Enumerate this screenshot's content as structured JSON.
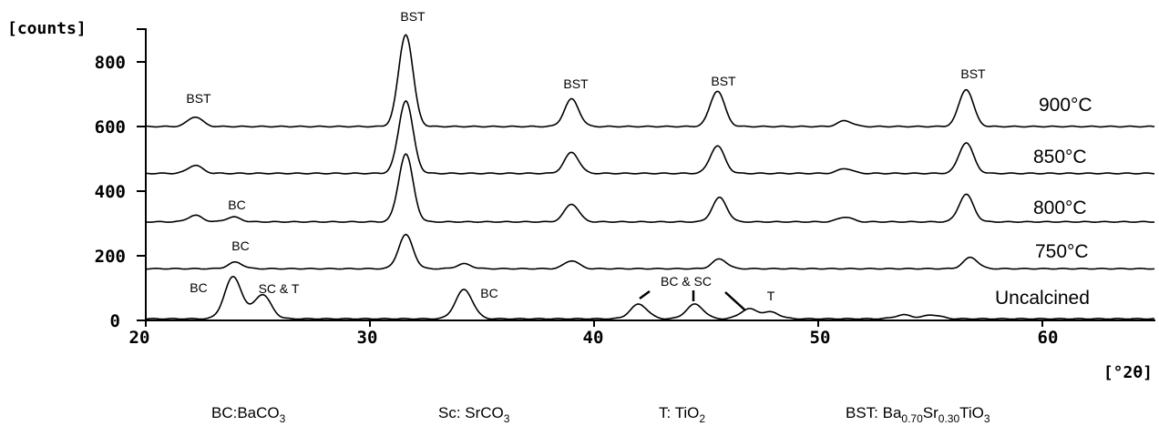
{
  "chart_data": {
    "type": "line",
    "xlabel": "[°2θ]",
    "ylabel": "[counts]",
    "xlim": [
      20,
      65
    ],
    "ylim": [
      0,
      900
    ],
    "x_ticks": [
      "20",
      "30",
      "40",
      "50",
      "60"
    ],
    "y_ticks": [
      "0",
      "200",
      "400",
      "600",
      "800"
    ],
    "grid": false,
    "series": [
      {
        "name": "900°C",
        "baseline": 600,
        "peaks": [
          [
            22.2,
            30
          ],
          [
            31.6,
            285
          ],
          [
            39.0,
            85
          ],
          [
            45.5,
            110
          ],
          [
            51.2,
            18
          ],
          [
            56.6,
            115
          ]
        ]
      },
      {
        "name": "850°C",
        "baseline": 455,
        "peaks": [
          [
            22.2,
            25
          ],
          [
            31.6,
            225
          ],
          [
            39.0,
            65
          ],
          [
            45.5,
            85
          ],
          [
            51.2,
            15
          ],
          [
            56.6,
            95
          ]
        ]
      },
      {
        "name": "800°C",
        "baseline": 305,
        "peaks": [
          [
            22.2,
            20
          ],
          [
            23.9,
            15
          ],
          [
            31.6,
            210
          ],
          [
            39.0,
            55
          ],
          [
            45.6,
            75
          ],
          [
            51.2,
            15
          ],
          [
            56.6,
            85
          ]
        ]
      },
      {
        "name": "750°C",
        "baseline": 160,
        "peaks": [
          [
            24.0,
            20
          ],
          [
            31.6,
            105
          ],
          [
            34.2,
            15
          ],
          [
            39.0,
            25
          ],
          [
            45.6,
            30
          ],
          [
            56.8,
            35
          ]
        ]
      },
      {
        "name": "Uncalcined",
        "baseline": 5,
        "peaks": [
          [
            23.9,
            130
          ],
          [
            25.2,
            75
          ],
          [
            34.2,
            90
          ],
          [
            42.0,
            45
          ],
          [
            44.5,
            45
          ],
          [
            46.9,
            30
          ],
          [
            47.9,
            20
          ],
          [
            53.8,
            12
          ],
          [
            55.1,
            12
          ]
        ]
      }
    ],
    "annotations": {
      "bst_top": "BST",
      "bst_900_22": "BST",
      "bst_900_39": "BST",
      "bst_900_45": "BST",
      "bst_900_56": "BST",
      "bc_800": "BC",
      "bc_750": "BC",
      "bc_unc_24": "BC",
      "sct_unc": "SC & T",
      "bc_unc_34": "BC",
      "bcsc_unc": "BC & SC",
      "t_unc": "T"
    },
    "legend": {
      "bc_main": "BC:BaCO",
      "bc_sub": "3",
      "sc_main": "Sc: SrCO",
      "sc_sub": "3",
      "t_main": "T: TiO",
      "t_sub": "2",
      "bst_prefix": "BST: Ba",
      "bst_sub1": "0.70",
      "bst_mid": "Sr",
      "bst_sub2": "0.30",
      "bst_suffix": "TiO",
      "bst_sub3": "3"
    }
  }
}
